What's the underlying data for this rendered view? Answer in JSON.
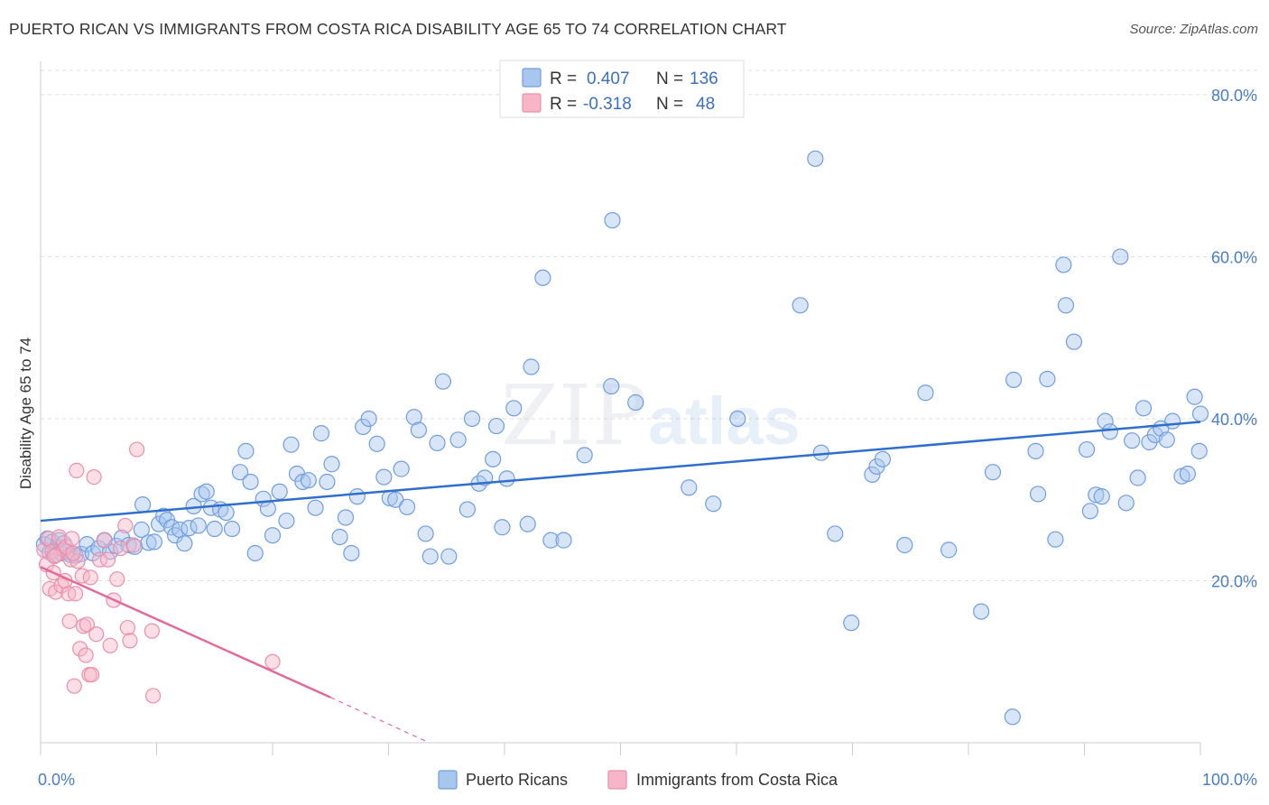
{
  "header": {
    "title": "PUERTO RICAN VS IMMIGRANTS FROM COSTA RICA DISABILITY AGE 65 TO 74 CORRELATION CHART",
    "source": "Source: ZipAtlas.com"
  },
  "watermark": {
    "zip": "ZIP",
    "atlas": "atlas"
  },
  "colors": {
    "blue_fill": "#a9c6ee",
    "blue_stroke": "#6f9ee0",
    "blue_line": "#2f6fcc",
    "pink_fill": "#f6b6c8",
    "pink_stroke": "#ec8fab",
    "pink_line": "#e4699a",
    "grid": "#dddddd",
    "tick_text": "#4a7cc7"
  },
  "legend": {
    "rows": [
      {
        "r_label": "R =",
        "r_value": "0.407",
        "n_label": "N =",
        "n_value": "136"
      },
      {
        "r_label": "R =",
        "r_value": "-0.318",
        "n_label": "N =",
        "n_value": "48"
      }
    ]
  },
  "bottom_legend": [
    "Puerto Ricans",
    "Immigrants from Costa Rica"
  ],
  "chart_data": {
    "type": "scatter",
    "title": "PUERTO RICAN VS IMMIGRANTS FROM COSTA RICA DISABILITY AGE 65 TO 74 CORRELATION CHART",
    "xlabel": "",
    "ylabel": "Disability Age 65 to 74",
    "xlim": [
      0,
      100
    ],
    "ylim": [
      0,
      83
    ],
    "y_ticks": [
      20,
      40,
      60,
      80
    ],
    "y_tick_labels": [
      "20.0%",
      "40.0%",
      "60.0%",
      "80.0%"
    ],
    "x_tick_labels": [
      "0.0%",
      "100.0%"
    ],
    "grid": true,
    "legend_position": "top-center",
    "series": [
      {
        "name": "Puerto Ricans",
        "trend": {
          "x": [
            0,
            100
          ],
          "y": [
            27.4,
            39.6
          ]
        },
        "points": [
          [
            0.3,
            24.5
          ],
          [
            0.6,
            25.2
          ],
          [
            0.8,
            23.5
          ],
          [
            1.0,
            24.8
          ],
          [
            1.2,
            23.2
          ],
          [
            1.4,
            24.1
          ],
          [
            1.6,
            25.0
          ],
          [
            1.8,
            23.4
          ],
          [
            2.0,
            24.6
          ],
          [
            2.3,
            23.6
          ],
          [
            2.6,
            23.2
          ],
          [
            3.0,
            23.1
          ],
          [
            3.5,
            23.3
          ],
          [
            4.0,
            24.5
          ],
          [
            4.5,
            23.4
          ],
          [
            5.0,
            24.0
          ],
          [
            5.5,
            25.0
          ],
          [
            6.0,
            23.6
          ],
          [
            6.5,
            24.3
          ],
          [
            7.0,
            25.3
          ],
          [
            7.6,
            24.4
          ],
          [
            8.1,
            24.2
          ],
          [
            8.7,
            26.3
          ],
          [
            8.8,
            29.4
          ],
          [
            9.3,
            24.7
          ],
          [
            9.8,
            24.8
          ],
          [
            10.2,
            27.0
          ],
          [
            10.6,
            28.0
          ],
          [
            10.9,
            27.5
          ],
          [
            11.3,
            26.6
          ],
          [
            11.6,
            25.6
          ],
          [
            12.0,
            26.3
          ],
          [
            12.4,
            24.6
          ],
          [
            12.8,
            26.5
          ],
          [
            13.2,
            29.2
          ],
          [
            13.6,
            26.8
          ],
          [
            13.9,
            30.7
          ],
          [
            14.3,
            31.0
          ],
          [
            14.7,
            29.0
          ],
          [
            15.0,
            26.4
          ],
          [
            15.5,
            28.8
          ],
          [
            16.0,
            28.4
          ],
          [
            16.5,
            26.4
          ],
          [
            17.2,
            33.4
          ],
          [
            17.7,
            36.0
          ],
          [
            18.1,
            32.2
          ],
          [
            18.5,
            23.4
          ],
          [
            19.2,
            30.1
          ],
          [
            19.6,
            28.9
          ],
          [
            20.0,
            25.6
          ],
          [
            20.6,
            31.0
          ],
          [
            21.2,
            27.4
          ],
          [
            21.6,
            36.8
          ],
          [
            22.1,
            33.2
          ],
          [
            22.6,
            32.2
          ],
          [
            23.1,
            32.4
          ],
          [
            23.7,
            29.0
          ],
          [
            24.2,
            38.2
          ],
          [
            24.7,
            32.2
          ],
          [
            25.1,
            34.4
          ],
          [
            25.8,
            25.4
          ],
          [
            26.3,
            27.8
          ],
          [
            26.8,
            23.4
          ],
          [
            27.3,
            30.4
          ],
          [
            27.8,
            39.0
          ],
          [
            28.3,
            40.0
          ],
          [
            29.0,
            36.9
          ],
          [
            29.6,
            32.8
          ],
          [
            30.1,
            30.2
          ],
          [
            30.6,
            30.0
          ],
          [
            31.1,
            33.8
          ],
          [
            31.6,
            29.1
          ],
          [
            32.2,
            40.2
          ],
          [
            32.6,
            38.6
          ],
          [
            33.2,
            25.8
          ],
          [
            33.6,
            23.0
          ],
          [
            34.2,
            37.0
          ],
          [
            34.7,
            44.6
          ],
          [
            35.2,
            23.0
          ],
          [
            36.0,
            37.4
          ],
          [
            36.8,
            28.8
          ],
          [
            37.2,
            40.0
          ],
          [
            37.8,
            32.0
          ],
          [
            38.3,
            32.7
          ],
          [
            39.0,
            35.0
          ],
          [
            39.3,
            39.1
          ],
          [
            39.8,
            26.6
          ],
          [
            40.2,
            32.6
          ],
          [
            40.8,
            41.3
          ],
          [
            42.0,
            27.0
          ],
          [
            42.3,
            46.4
          ],
          [
            43.3,
            57.4
          ],
          [
            44.0,
            25.0
          ],
          [
            45.1,
            25.0
          ],
          [
            46.9,
            35.5
          ],
          [
            49.2,
            44.0
          ],
          [
            49.3,
            64.5
          ],
          [
            51.3,
            42.0
          ],
          [
            55.9,
            31.5
          ],
          [
            58.0,
            29.5
          ],
          [
            60.1,
            40.0
          ],
          [
            65.5,
            54.0
          ],
          [
            66.8,
            72.1
          ],
          [
            67.3,
            35.8
          ],
          [
            68.5,
            25.8
          ],
          [
            69.9,
            14.8
          ],
          [
            71.7,
            33.1
          ],
          [
            72.1,
            34.1
          ],
          [
            72.6,
            35.0
          ],
          [
            74.5,
            24.4
          ],
          [
            76.3,
            43.2
          ],
          [
            78.3,
            23.8
          ],
          [
            81.1,
            16.2
          ],
          [
            82.1,
            33.4
          ],
          [
            83.8,
            3.2
          ],
          [
            83.9,
            44.8
          ],
          [
            85.8,
            36.0
          ],
          [
            86.0,
            30.7
          ],
          [
            86.8,
            44.9
          ],
          [
            87.5,
            25.1
          ],
          [
            88.2,
            59.0
          ],
          [
            88.4,
            54.0
          ],
          [
            89.1,
            49.5
          ],
          [
            90.2,
            36.2
          ],
          [
            90.5,
            28.6
          ],
          [
            91.0,
            30.6
          ],
          [
            91.5,
            30.4
          ],
          [
            91.8,
            39.7
          ],
          [
            92.2,
            38.4
          ],
          [
            93.1,
            60.0
          ],
          [
            93.6,
            29.6
          ],
          [
            94.1,
            37.3
          ],
          [
            94.6,
            32.7
          ],
          [
            95.1,
            41.3
          ],
          [
            95.6,
            37.1
          ],
          [
            96.1,
            38.0
          ],
          [
            96.6,
            38.8
          ],
          [
            97.1,
            37.4
          ],
          [
            97.6,
            39.7
          ],
          [
            98.4,
            32.9
          ],
          [
            98.9,
            33.2
          ],
          [
            99.5,
            42.7
          ],
          [
            99.9,
            36.0
          ],
          [
            100.0,
            40.6
          ]
        ]
      },
      {
        "name": "Immigrants from Costa Rica",
        "trend": {
          "x": [
            0,
            25
          ],
          "y": [
            21.7,
            5.6
          ]
        },
        "trend_extension": {
          "x": [
            25,
            33.5
          ],
          "y": [
            5.6,
            0.0
          ]
        },
        "points": [
          [
            0.3,
            23.8
          ],
          [
            0.5,
            22.0
          ],
          [
            0.7,
            25.2
          ],
          [
            0.8,
            19.0
          ],
          [
            1.0,
            23.6
          ],
          [
            1.1,
            21.0
          ],
          [
            1.3,
            18.6
          ],
          [
            1.4,
            23.2
          ],
          [
            1.6,
            25.4
          ],
          [
            1.8,
            19.4
          ],
          [
            2.0,
            23.8
          ],
          [
            2.1,
            20.0
          ],
          [
            2.2,
            24.2
          ],
          [
            2.4,
            18.4
          ],
          [
            2.5,
            15.0
          ],
          [
            2.6,
            22.6
          ],
          [
            2.7,
            25.2
          ],
          [
            2.9,
            7.0
          ],
          [
            3.0,
            18.4
          ],
          [
            3.1,
            33.6
          ],
          [
            3.2,
            22.4
          ],
          [
            3.4,
            11.6
          ],
          [
            3.6,
            20.6
          ],
          [
            3.7,
            14.4
          ],
          [
            3.9,
            10.8
          ],
          [
            4.0,
            14.6
          ],
          [
            4.2,
            8.4
          ],
          [
            4.3,
            20.4
          ],
          [
            4.4,
            8.4
          ],
          [
            4.6,
            32.8
          ],
          [
            4.8,
            13.4
          ],
          [
            5.1,
            22.6
          ],
          [
            5.5,
            25.0
          ],
          [
            5.8,
            22.6
          ],
          [
            6.0,
            12.0
          ],
          [
            6.3,
            17.6
          ],
          [
            6.6,
            20.2
          ],
          [
            6.9,
            24.0
          ],
          [
            7.3,
            26.8
          ],
          [
            7.5,
            14.2
          ],
          [
            7.7,
            12.6
          ],
          [
            8.0,
            24.4
          ],
          [
            8.3,
            36.2
          ],
          [
            9.6,
            13.8
          ],
          [
            9.7,
            5.8
          ],
          [
            20.0,
            10.0
          ],
          [
            1.2,
            23.0
          ],
          [
            2.8,
            23.4
          ]
        ]
      }
    ]
  }
}
